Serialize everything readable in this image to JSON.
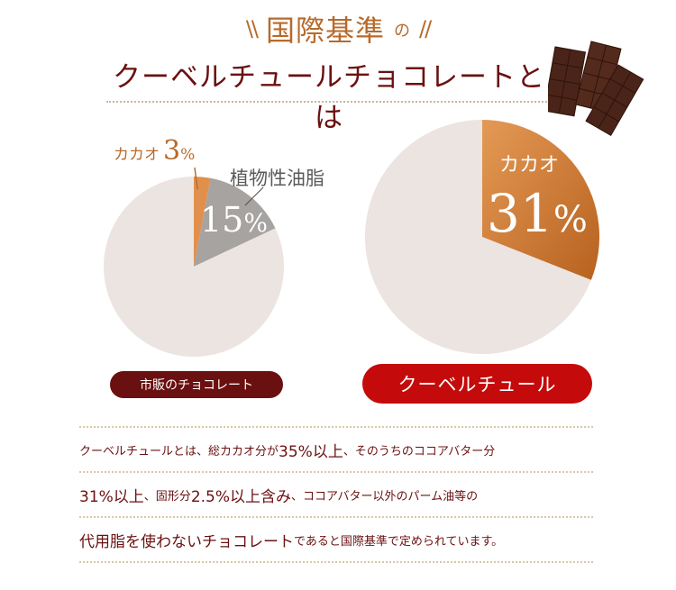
{
  "header": {
    "kicker_main": "国際基準",
    "kicker_suffix": "の",
    "title": "クーベルチュールチョコレートとは"
  },
  "chart_data": [
    {
      "type": "pie",
      "series_label": "市販のチョコレート",
      "slices": [
        {
          "label": "カカオ",
          "value": 3,
          "display": "3%",
          "color": "#e0904c"
        },
        {
          "label": "植物性油脂",
          "value": 15,
          "display": "15%",
          "color": "#a6a3a1"
        },
        {
          "label": "",
          "value": 82,
          "color": "#ece4e1"
        }
      ]
    },
    {
      "type": "pie",
      "series_label": "クーベルチュール",
      "slices": [
        {
          "label": "カカオ",
          "value": 31,
          "display": "31%",
          "color": "#cf7b33"
        },
        {
          "label": "",
          "value": 69,
          "color": "#ece4e1"
        }
      ]
    }
  ],
  "labels": {
    "cacao3_text": "カカオ",
    "cacao3_value": "3",
    "cacao3_pct": "%",
    "veg_text": "植物性油脂",
    "veg_value": "15",
    "veg_pct": "%",
    "cacao31_text": "カカオ",
    "cacao31_value": "31",
    "cacao31_pct": "%"
  },
  "buttons": {
    "market": "市販のチョコレート",
    "couverture": "クーベルチュール"
  },
  "description": {
    "lines": [
      [
        {
          "t": "クーベルチュールとは、",
          "size": "s"
        },
        {
          "t": "総カカオ分が",
          "size": "s"
        },
        {
          "t": "35%以上",
          "size": "l"
        },
        {
          "t": "、そのうちのココアバター分",
          "size": "s"
        }
      ],
      [
        {
          "t": "31%以上",
          "size": "l"
        },
        {
          "t": "、固形分",
          "size": "s"
        },
        {
          "t": "2.5%以上含み",
          "size": "l"
        },
        {
          "t": "、ココアバター以外のパーム油等の",
          "size": "s"
        }
      ],
      [
        {
          "t": "代用脂を使わないチョコレート",
          "size": "l"
        },
        {
          "t": "であると国際基準で定められています。",
          "size": "s"
        }
      ]
    ]
  },
  "colors": {
    "title": "#6b1010",
    "accent": "#b86a2a",
    "couverture_button": "#c40a0a",
    "market_button": "#6b1010",
    "pie_base": "#ece4e1",
    "cacao_slice": "#cf7b33",
    "veg_slice": "#a6a3a1"
  },
  "icons": {
    "decorative_image": "chocolate-bars-image"
  }
}
